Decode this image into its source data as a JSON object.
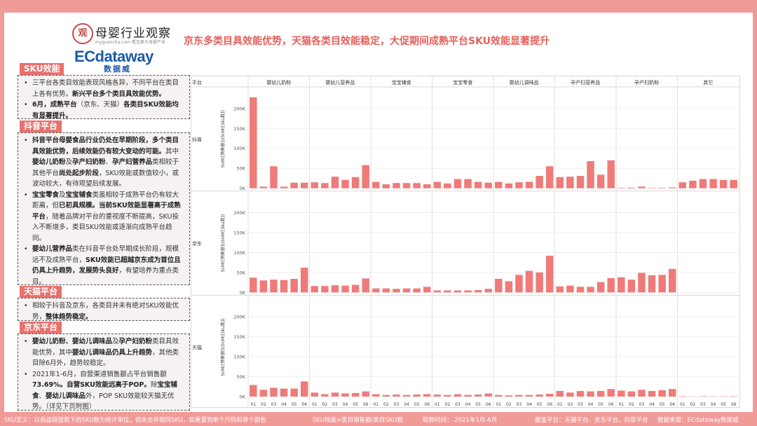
{
  "header": {
    "logo1_seal": "观",
    "logo1_brand": "母婴行业观察",
    "logo1_sub": "myguancha.com 看见更大母婴产业",
    "logo2_main": "ECdataway",
    "logo2_cn": "数据威",
    "headline": "京东多类目具效能优势，天猫各类目效能稳定，大促期间成熟平台SKU效能显著提升"
  },
  "sections": {
    "sku": {
      "title": "SKU效能",
      "items": [
        [
          {
            "t": "三平台各类目效能表现风格各异，不同平台在类目上各有优势。"
          },
          {
            "t": "新兴平台多个类目具效能优势。",
            "b": true
          }
        ],
        [
          {
            "t": "6月，成熟平台",
            "b": true
          },
          {
            "t": "（京东、天猫）"
          },
          {
            "t": "各类目SKU效能均有显著提升。",
            "b": true
          }
        ]
      ]
    },
    "douyin": {
      "title": "抖音平台",
      "items": [
        [
          {
            "t": "抖音平台母婴食品行业仍处在早期阶段，多个类目具效能优势，后续效能仍有较大变动的可能。",
            "b": true
          },
          {
            "t": "其中"
          },
          {
            "t": "婴幼儿奶粉",
            "b": true
          },
          {
            "t": "及"
          },
          {
            "t": "孕产妇奶粉",
            "b": true
          },
          {
            "t": "、"
          },
          {
            "t": "孕产妇营养品",
            "b": true
          },
          {
            "t": "类相较于其他平台"
          },
          {
            "t": "尚处起步阶段",
            "b": true
          },
          {
            "t": "，SKU效能或数值较小，或波动较大，有待观望后续发展。"
          }
        ],
        [
          {
            "t": "宝宝零食",
            "b": true
          },
          {
            "t": "及"
          },
          {
            "t": "宝宝辅食",
            "b": true
          },
          {
            "t": "类虽相较于成熟平台仍有较大距离，但"
          },
          {
            "t": "已初具规模。当前SKU效能显著高于成熟平台",
            "b": true
          },
          {
            "t": "，随着品牌对平台的重视度不断提高，SKU投入不断增多，类目SKU效能或逐渐向成熟平台趋同。"
          }
        ],
        [
          {
            "t": "婴幼儿营养品",
            "b": true
          },
          {
            "t": "类在抖音平台处早期成长阶段，规模远不及成熟平台，"
          },
          {
            "t": "SKU效能已超越京东成为首位且仍具上升趋势，发展势头良好",
            "b": true
          },
          {
            "t": "，有望培养为重点类目。"
          }
        ]
      ]
    },
    "tmall": {
      "title": "天猫平台",
      "items": [
        [
          {
            "t": "相较于抖音及京东，各类目并未有绝对SKU效能优势，"
          },
          {
            "t": "整体趋势稳定。",
            "b": true
          }
        ]
      ]
    },
    "jd": {
      "title": "京东平台",
      "items": [
        [
          {
            "t": "婴幼儿奶粉、婴幼儿调味品",
            "b": true
          },
          {
            "t": "及"
          },
          {
            "t": "孕产妇奶粉",
            "b": true
          },
          {
            "t": "类目具效能优势，其中"
          },
          {
            "t": "婴幼儿调味品仍具上升趋势",
            "b": true
          },
          {
            "t": "，其他类目除6月外，趋势较稳定。"
          }
        ],
        [
          {
            "t": "2021年1-6月，自营渠道销售额占平台销售额"
          },
          {
            "t": "73.69%。自营SKU效能远高于POP。",
            "b": true
          },
          {
            "t": "除"
          },
          {
            "t": "宝宝辅食",
            "b": true
          },
          {
            "t": "、"
          },
          {
            "t": "婴幼儿调味品",
            "b": true
          },
          {
            "t": "外，POP SKU效能较天猫无优势。（详见下页附图）"
          }
        ]
      ]
    }
  },
  "footer": {
    "definition": "SKU定义：以商品链接数下的SKU数为统计单位，但未合并相同SKU，如重量到单个尺码和单个颜色",
    "formula": "SKU效能=类目销售额/类目SKU数",
    "period": "取数时间：  2021年1月-6月",
    "coverage": "覆盖平台：天猫平台、京东平台、抖音平台",
    "source": "数据来源：ECdataway数据威"
  },
  "colors": {
    "accent": "#e4605c",
    "bar": "#ef7b79",
    "tag": "#e9706c",
    "frame": "#f19b98",
    "brand_blue": "#1a5aa8"
  },
  "chart_data": {
    "type": "bar",
    "corner_label": "平台",
    "categories": [
      "婴幼儿奶粉",
      "婴幼儿营养品",
      "宝宝辅食",
      "宝宝零食",
      "婴幼儿调味品",
      "孕产妇营养品",
      "孕产妇奶粉",
      "其它"
    ],
    "months": [
      "01",
      "02",
      "03",
      "04",
      "05",
      "06"
    ],
    "ylabel": "SUM([销售额])/SUM([Sku数])",
    "yticks": [
      0,
      50000,
      100000,
      150000,
      200000
    ],
    "ytick_labels": [
      "0K",
      "50K",
      "100K",
      "150K",
      "200K"
    ],
    "ylim": [
      0,
      240000
    ],
    "panels": [
      {
        "platform": "抖音",
        "values": [
          [
            228000,
            4000,
            55000,
            4000,
            14000,
            14000
          ],
          [
            15000,
            13000,
            29000,
            21000,
            28000,
            58000
          ],
          [
            16000,
            10000,
            13000,
            13000,
            13000,
            10000
          ],
          [
            16000,
            12000,
            23000,
            23000,
            16000,
            14000
          ],
          [
            16000,
            12000,
            15000,
            16000,
            31000,
            55000
          ],
          [
            28000,
            29000,
            31000,
            68000,
            34000,
            70000
          ],
          [
            1000,
            1500,
            4000,
            1000,
            1000,
            2000
          ],
          [
            15000,
            19000,
            23000,
            23000,
            21000,
            21000
          ]
        ]
      },
      {
        "platform": "京东",
        "values": [
          [
            37000,
            30000,
            32000,
            31000,
            34000,
            62000
          ],
          [
            16000,
            16000,
            18000,
            17000,
            19000,
            35000
          ],
          [
            10000,
            10000,
            9000,
            10000,
            10000,
            14000
          ],
          [
            5000,
            5000,
            5000,
            5000,
            6000,
            9000
          ],
          [
            34000,
            28000,
            44000,
            54000,
            50000,
            92000
          ],
          [
            15000,
            17000,
            14000,
            14000,
            26000,
            36000
          ],
          [
            38000,
            32000,
            49000,
            43000,
            44000,
            59000
          ],
          [
            0,
            0,
            0,
            0,
            0,
            0
          ]
        ]
      },
      {
        "platform": "天猫",
        "values": [
          [
            29000,
            17000,
            22000,
            20000,
            20000,
            38000
          ],
          [
            10000,
            6000,
            10000,
            8000,
            9000,
            13000
          ],
          [
            6000,
            4000,
            5000,
            4000,
            5000,
            6000
          ],
          [
            5000,
            4000,
            6000,
            4000,
            5000,
            8000
          ],
          [
            4000,
            3000,
            4000,
            4000,
            5000,
            7000
          ],
          [
            14000,
            10000,
            14000,
            13000,
            14000,
            19000
          ],
          [
            15000,
            13000,
            17000,
            14000,
            16000,
            19000
          ],
          [
            1000,
            500,
            1000,
            700,
            700,
            1000
          ]
        ]
      }
    ]
  }
}
